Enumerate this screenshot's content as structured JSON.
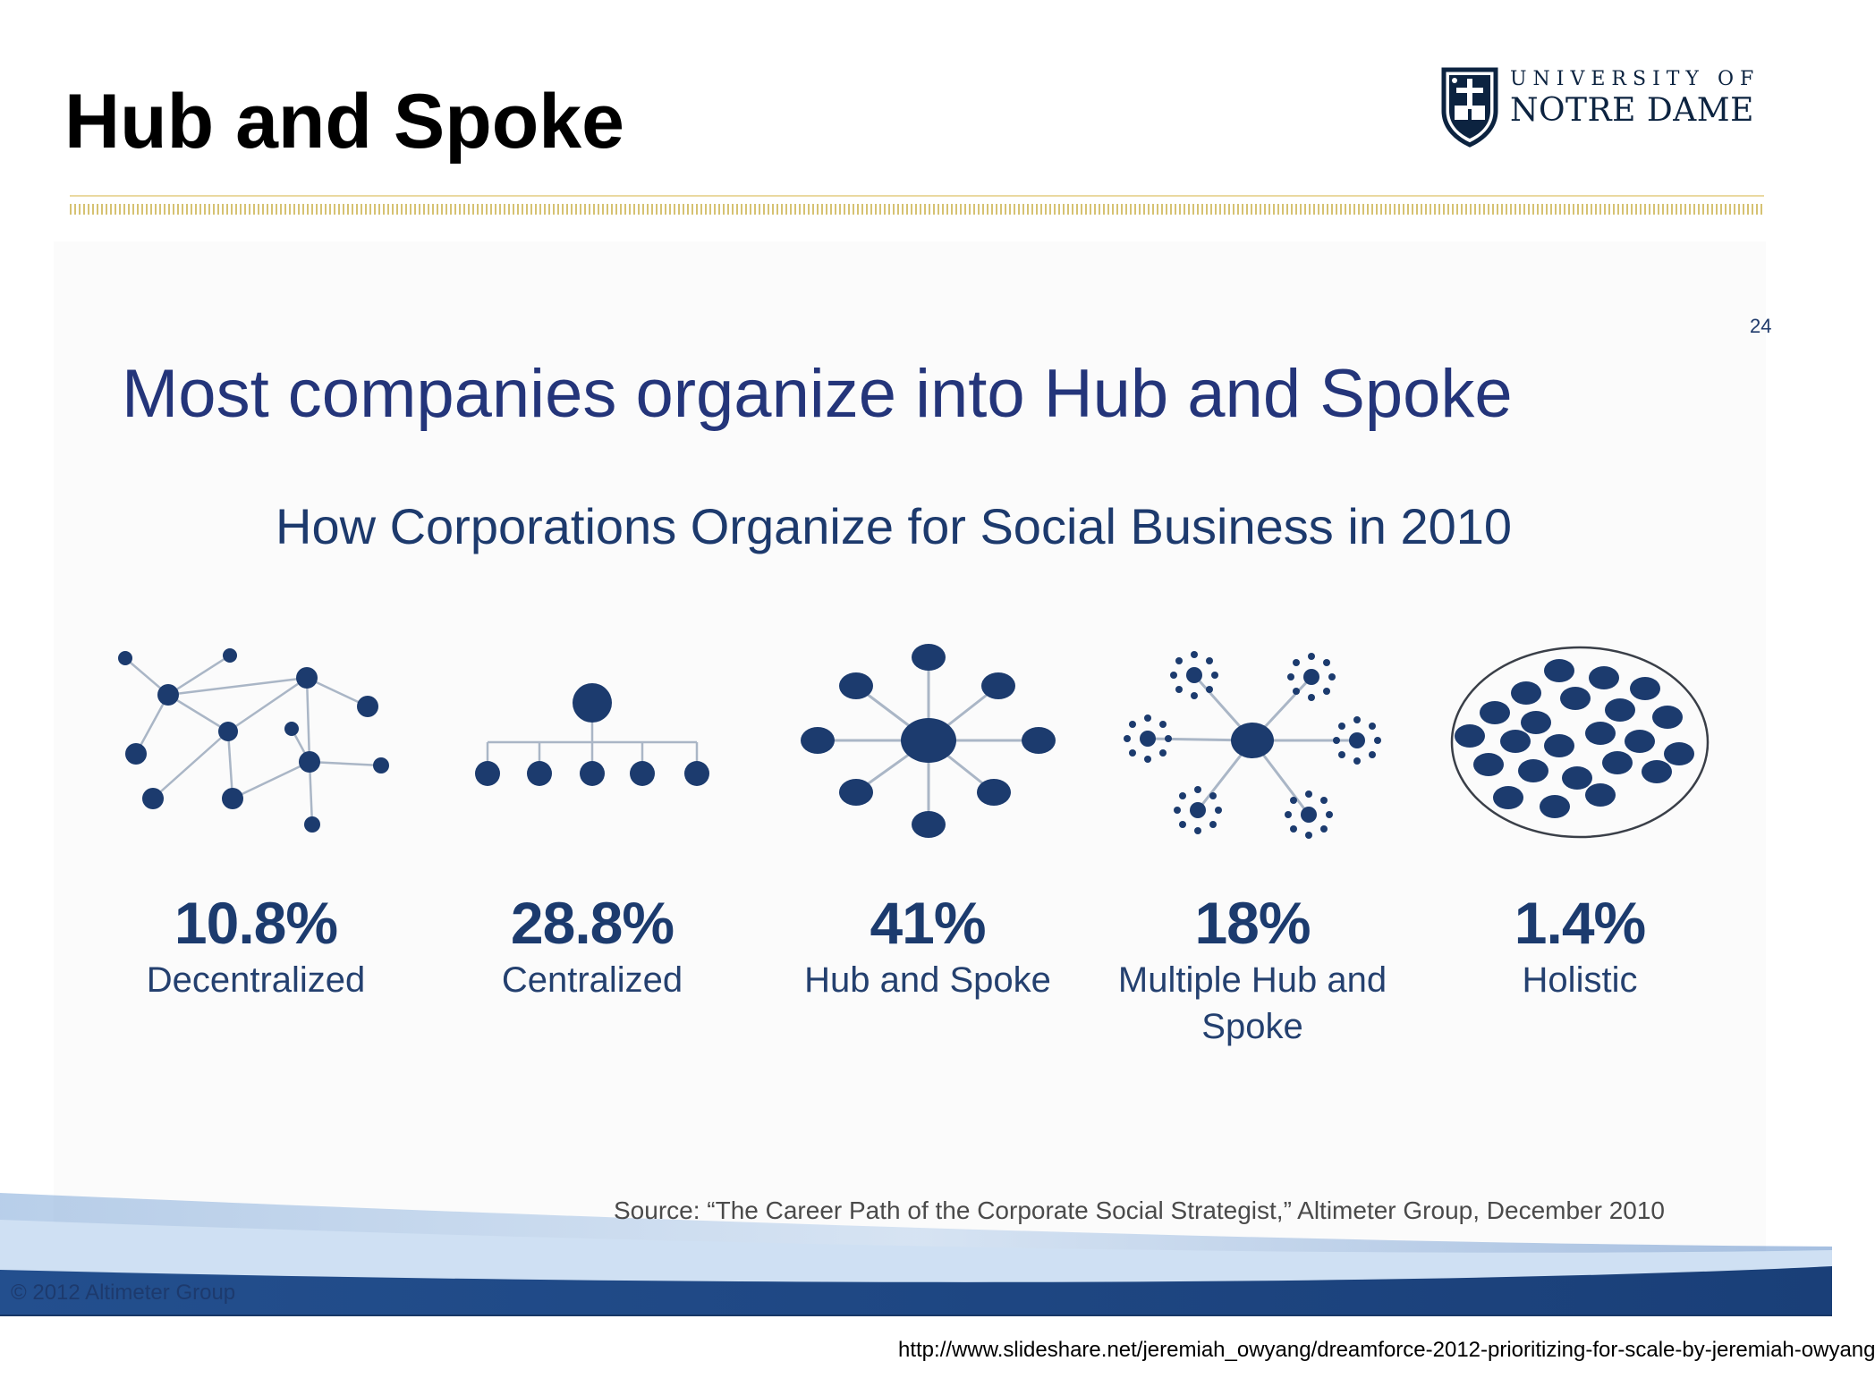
{
  "slide": {
    "title": "Hub and Spoke",
    "logo": {
      "top": "UNIVERSITY OF",
      "bottom": "NOTRE DAME"
    },
    "page_number": "24",
    "headline": "Most companies organize into Hub and Spoke",
    "subheadline": "How Corporations Organize for Social Business in 2010",
    "source": "Source: “The Career Path of the Corporate Social Strategist,” Altimeter Group, December 2010",
    "copyright": "© 2012 Altimeter Group",
    "url": "http://www.slideshare.net/jeremiah_owyang/dreamforce-2012-prioritizing-for-scale-by-jeremiah-owyang"
  },
  "models": [
    {
      "id": "decentralized",
      "percent": "10.8%",
      "label": "Decentralized",
      "icon": "decentralized-network-icon"
    },
    {
      "id": "centralized",
      "percent": "28.8%",
      "label": "Centralized",
      "icon": "centralized-hierarchy-icon"
    },
    {
      "id": "hub-and-spoke",
      "percent": "41%",
      "label": "Hub and Spoke",
      "icon": "hub-and-spoke-icon"
    },
    {
      "id": "multiple-hub",
      "percent": "18%",
      "label": "Multiple Hub and Spoke",
      "icon": "multiple-hub-and-spoke-icon"
    },
    {
      "id": "holistic",
      "percent": "1.4%",
      "label": "Holistic",
      "icon": "holistic-icon"
    }
  ],
  "colors": {
    "node": "#1c3b6e",
    "edge": "#aab6c6",
    "title": "#000000",
    "headline": "#24357a",
    "gold": "#d6c272",
    "footer_blue": "#234f8e"
  }
}
